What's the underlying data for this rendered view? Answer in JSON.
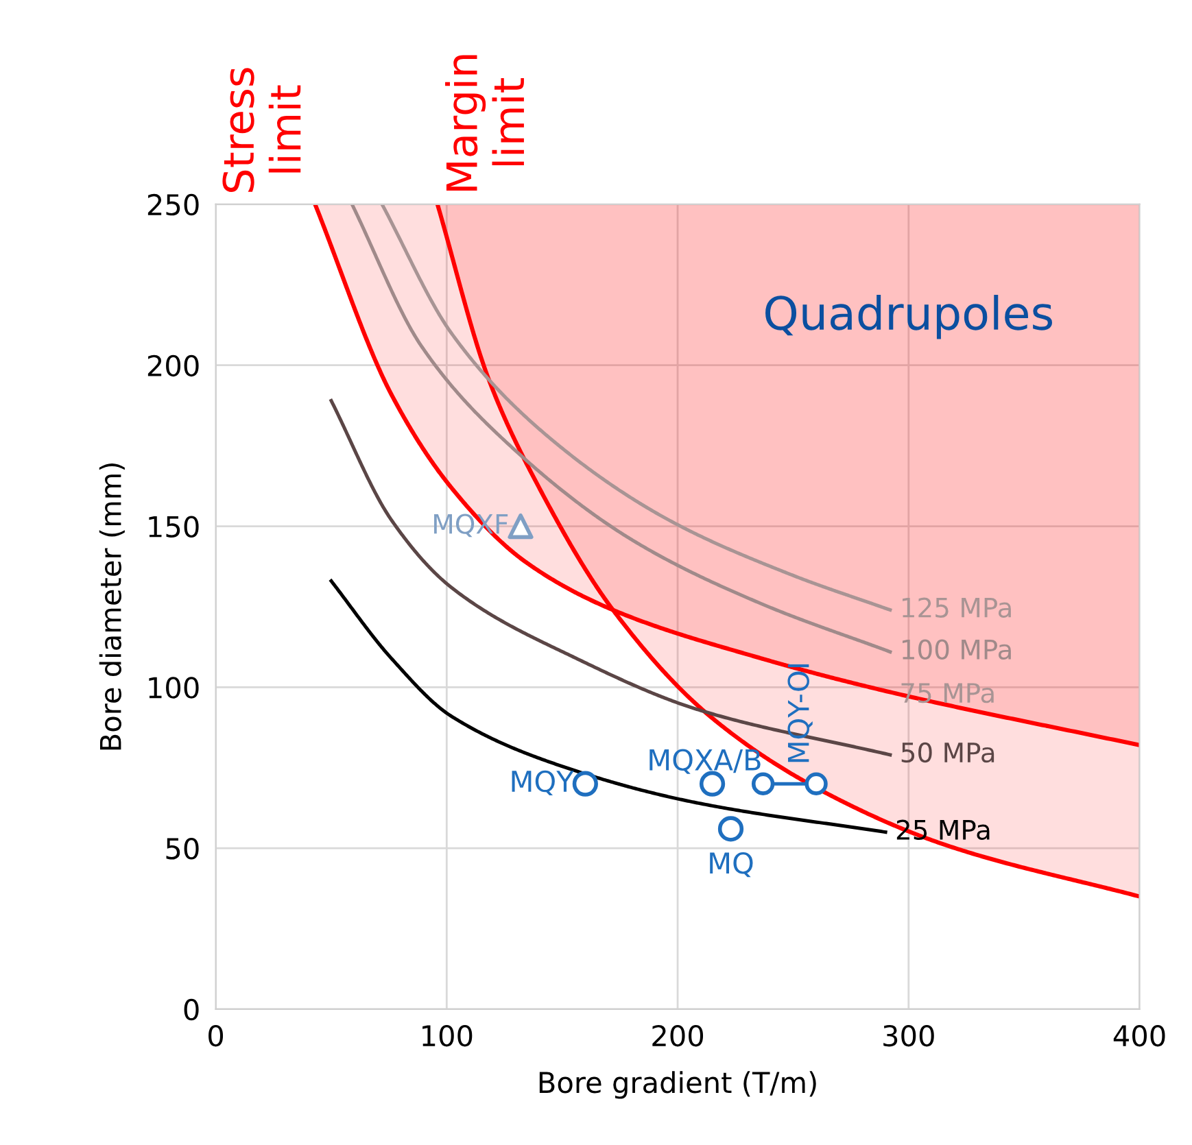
{
  "chart_data": {
    "type": "line",
    "xlabel": "Bore gradient (T/m)",
    "ylabel": "Bore diameter (mm)",
    "xlim": [
      0,
      400
    ],
    "ylim": [
      0,
      250
    ],
    "xticks": [
      0,
      100,
      200,
      300,
      400
    ],
    "yticks": [
      0,
      50,
      100,
      150,
      200,
      250
    ],
    "grid": true,
    "series": [
      {
        "name": "Stress\nlimit",
        "type": "line",
        "color": "#ff0000",
        "x": [
          43,
          76,
          102,
          134,
          172,
          236,
          289,
          400
        ],
        "values": [
          250,
          191,
          162,
          139,
          124,
          109,
          99,
          82
        ],
        "lower": [
          250,
          191,
          162,
          139,
          124,
          109,
          99,
          82
        ],
        "upper": [
          250,
          250,
          250,
          250,
          250,
          250,
          250,
          250
        ]
      },
      {
        "name": "Margin\nlimit",
        "type": "line",
        "color": "#ff0000",
        "x": [
          96,
          118,
          140,
          172,
          214,
          262,
          316,
          400
        ],
        "values": [
          250,
          196,
          162,
          124,
          91,
          68,
          51,
          35
        ],
        "lower": [
          250,
          196,
          162,
          124,
          91,
          68,
          51,
          35
        ],
        "upper": [
          250,
          250,
          250,
          250,
          250,
          250,
          250,
          250
        ]
      },
      {
        "name": "25 MPa",
        "color": "#000000",
        "x": [
          50,
          76,
          102,
          156,
          209,
          290
        ],
        "values": [
          133,
          109,
          91,
          74,
          64,
          55
        ]
      },
      {
        "name": "50 MPa",
        "color": "#5b4646",
        "x": [
          50,
          76,
          102,
          156,
          209,
          292
        ],
        "values": [
          189,
          152,
          131,
          109,
          93,
          79
        ]
      },
      {
        "name": "100 MPa",
        "color": "#a08a8a",
        "x": [
          59,
          89,
          129,
          182,
          236,
          292
        ],
        "values": [
          250,
          206,
          174,
          145,
          126,
          111
        ]
      },
      {
        "name": "125 MPa",
        "color": "#a89494",
        "x": [
          72,
          102,
          142,
          196,
          249,
          292
        ],
        "values": [
          250,
          210,
          179,
          152,
          135,
          124
        ]
      },
      {
        "name": "MQXF",
        "type": "scatter",
        "marker": "triangle",
        "color": "#7f9fc4",
        "x": [
          132
        ],
        "values": [
          150
        ]
      },
      {
        "name": "MQY",
        "type": "scatter",
        "marker": "circle",
        "color": "#1f6fbf",
        "x": [
          160
        ],
        "values": [
          70
        ]
      },
      {
        "name": "MQXA/B",
        "type": "scatter",
        "marker": "circle",
        "color": "#1f6fbf",
        "x": [
          215
        ],
        "values": [
          70
        ]
      },
      {
        "name": "MQ",
        "type": "scatter",
        "marker": "circle",
        "color": "#1f6fbf",
        "x": [
          223
        ],
        "values": [
          56
        ]
      },
      {
        "name": "MQY-OI",
        "type": "line",
        "marker": "circle",
        "color": "#1f6fbf",
        "x": [
          237,
          260
        ],
        "values": [
          70,
          70
        ]
      }
    ],
    "annotations": [
      "Quadrupoles",
      "75 MPa"
    ]
  }
}
